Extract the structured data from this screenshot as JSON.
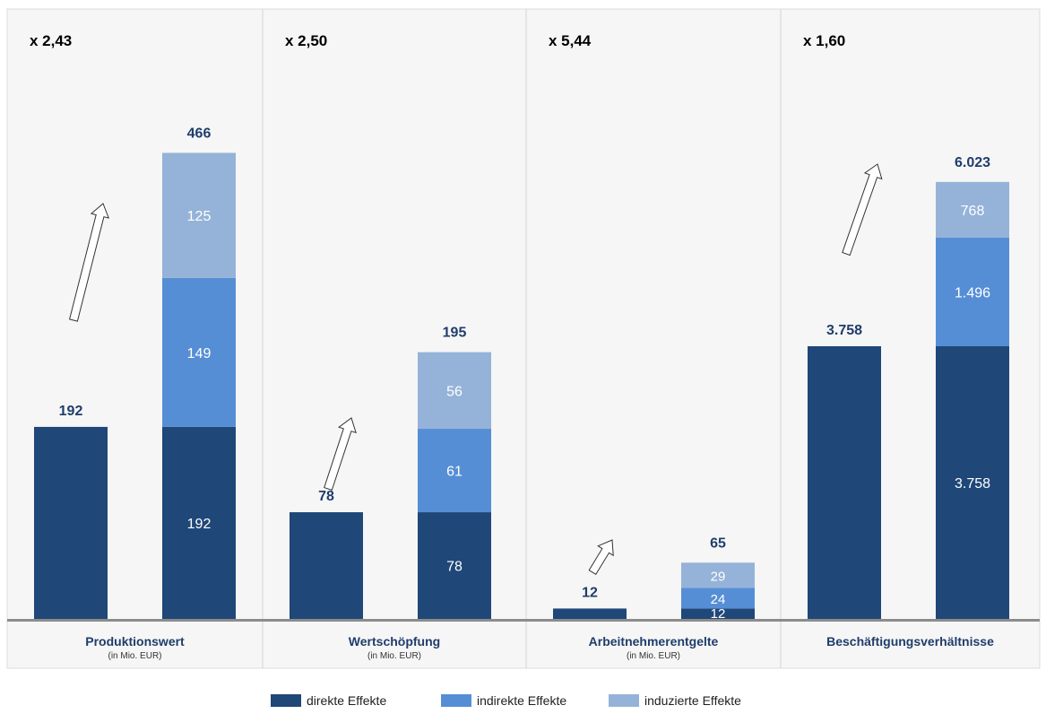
{
  "colors": {
    "direct": "#1f4778",
    "indirect": "#568ed5",
    "induced": "#95b3d8",
    "panel_bg": "#f6f6f6",
    "label_dark": "#1f3d6b",
    "baseline": "#8c8c8c"
  },
  "legend": {
    "direct": "direkte Effekte",
    "indirect": "indirekte Effekte",
    "induced": "induzierte Effekte"
  },
  "chart_data": [
    {
      "type": "bar",
      "multiplier": "x 2,43",
      "xlabel": "Produktionswert",
      "unit": "(in Mio. EUR)",
      "direct_bar": {
        "value": 192,
        "label": "192"
      },
      "stack": {
        "total_label": "466",
        "segments": [
          {
            "series": "direct",
            "value": 192,
            "label": "192"
          },
          {
            "series": "indirect",
            "value": 149,
            "label": "149"
          },
          {
            "series": "induced",
            "value": 125,
            "label": "125"
          }
        ]
      }
    },
    {
      "type": "bar",
      "multiplier": "x 2,50",
      "xlabel": "Wertschöpfung",
      "unit": "(in Mio. EUR)",
      "direct_bar": {
        "value": 78,
        "label": "78"
      },
      "stack": {
        "total_label": "195",
        "segments": [
          {
            "series": "direct",
            "value": 78,
            "label": "78"
          },
          {
            "series": "indirect",
            "value": 61,
            "label": "61"
          },
          {
            "series": "induced",
            "value": 56,
            "label": "56"
          }
        ]
      }
    },
    {
      "type": "bar",
      "multiplier": "x 5,44",
      "xlabel": "Arbeitnehmerentgelte",
      "unit": "(in Mio. EUR)",
      "direct_bar": {
        "value": 12,
        "label": "12"
      },
      "stack": {
        "total_label": "65",
        "segments": [
          {
            "series": "direct",
            "value": 12,
            "label": "12"
          },
          {
            "series": "indirect",
            "value": 24,
            "label": "24"
          },
          {
            "series": "induced",
            "value": 29,
            "label": "29"
          }
        ]
      }
    },
    {
      "type": "bar",
      "multiplier": "x 1,60",
      "xlabel": "Beschäftigungsverhältnisse",
      "unit": "",
      "direct_bar": {
        "value": 3758,
        "label": "3.758"
      },
      "stack": {
        "total_label": "6.023",
        "segments": [
          {
            "series": "direct",
            "value": 3758,
            "label": "3.758"
          },
          {
            "series": "indirect",
            "value": 1496,
            "label": "1.496"
          },
          {
            "series": "induced",
            "value": 768,
            "label": "768"
          }
        ]
      }
    }
  ]
}
